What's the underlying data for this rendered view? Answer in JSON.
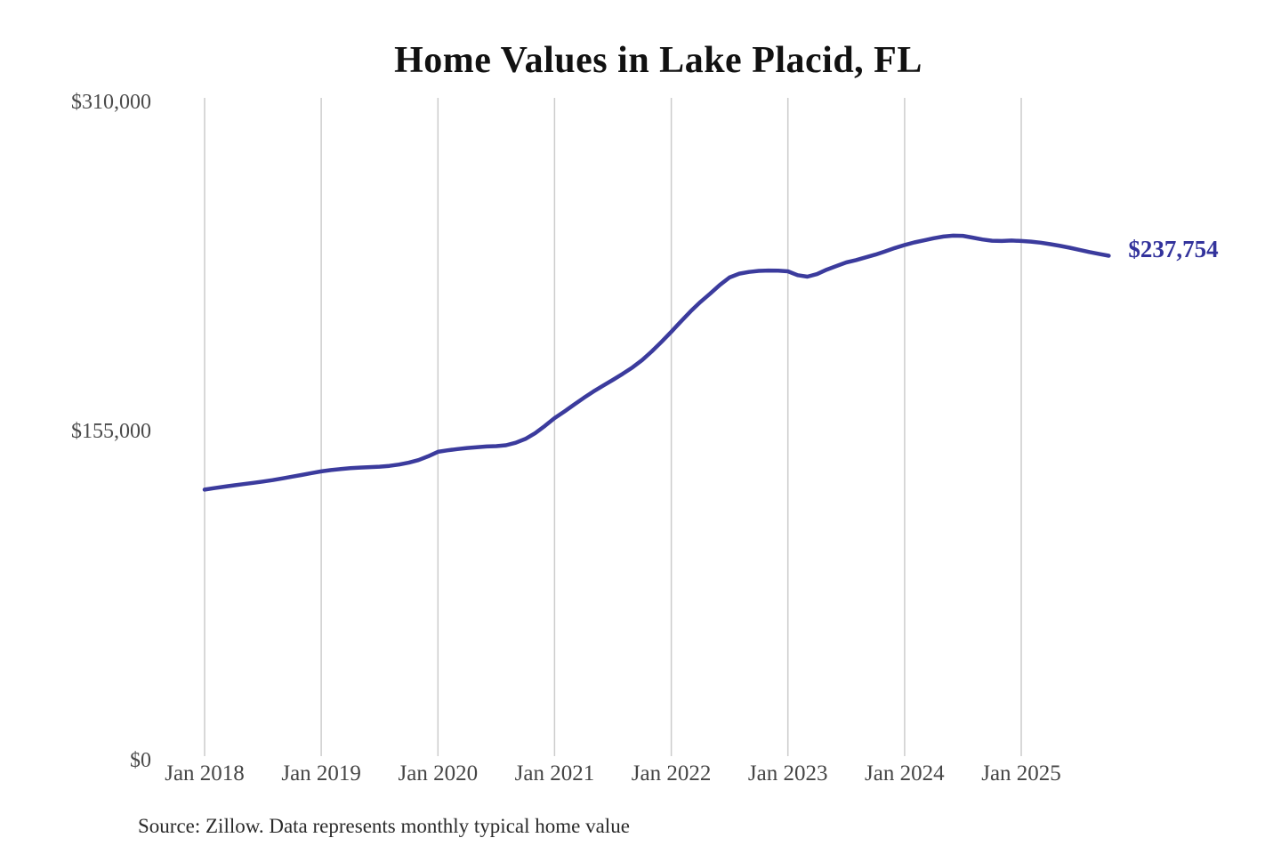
{
  "colors": {
    "line": "#3b3b9d",
    "end_label": "#33339c",
    "gridline": "#cccccc",
    "axis_text": "#4a4a4a",
    "title_text": "#111111",
    "background": "#ffffff"
  },
  "chart_data": {
    "type": "line",
    "title": "Home Values in Lake Placid, FL",
    "source": "Source: Zillow. Data represents monthly typical home value",
    "xlabel": "",
    "ylabel": "",
    "ylim": [
      0,
      310000
    ],
    "grid": "vertical-only",
    "legend": "none",
    "y_ticks": [
      {
        "label": "$0",
        "value": 0
      },
      {
        "label": "$155,000",
        "value": 155000
      },
      {
        "label": "$310,000",
        "value": 310000
      }
    ],
    "x_tick_labels": [
      "Jan 2018",
      "Jan 2019",
      "Jan 2020",
      "Jan 2021",
      "Jan 2022",
      "Jan 2023",
      "Jan 2024",
      "Jan 2025"
    ],
    "last_value": 237754,
    "last_value_label": "$237,754",
    "series": [
      {
        "name": "Typical home value",
        "color": "#3b3b9d",
        "frequency": "monthly",
        "x_start": "2018-01",
        "x_end": "2025-10",
        "months": [
          "2018-01",
          "2018-02",
          "2018-03",
          "2018-04",
          "2018-05",
          "2018-06",
          "2018-07",
          "2018-08",
          "2018-09",
          "2018-10",
          "2018-11",
          "2018-12",
          "2019-01",
          "2019-02",
          "2019-03",
          "2019-04",
          "2019-05",
          "2019-06",
          "2019-07",
          "2019-08",
          "2019-09",
          "2019-10",
          "2019-11",
          "2019-12",
          "2020-01",
          "2020-02",
          "2020-03",
          "2020-04",
          "2020-05",
          "2020-06",
          "2020-07",
          "2020-08",
          "2020-09",
          "2020-10",
          "2020-11",
          "2020-12",
          "2021-01",
          "2021-02",
          "2021-03",
          "2021-04",
          "2021-05",
          "2021-06",
          "2021-07",
          "2021-08",
          "2021-09",
          "2021-10",
          "2021-11",
          "2021-12",
          "2022-01",
          "2022-02",
          "2022-03",
          "2022-04",
          "2022-05",
          "2022-06",
          "2022-07",
          "2022-08",
          "2022-09",
          "2022-10",
          "2022-11",
          "2022-12",
          "2023-01",
          "2023-02",
          "2023-03",
          "2023-04",
          "2023-05",
          "2023-06",
          "2023-07",
          "2023-08",
          "2023-09",
          "2023-10",
          "2023-11",
          "2023-12",
          "2024-01",
          "2024-02",
          "2024-03",
          "2024-04",
          "2024-05",
          "2024-06",
          "2024-07",
          "2024-08",
          "2024-09",
          "2024-10",
          "2024-11",
          "2024-12",
          "2025-01",
          "2025-02",
          "2025-03",
          "2025-04",
          "2025-05",
          "2025-06",
          "2025-07",
          "2025-08",
          "2025-09",
          "2025-10"
        ],
        "values": [
          127600,
          128300,
          129000,
          129600,
          130200,
          130800,
          131400,
          132100,
          132900,
          133700,
          134500,
          135400,
          136200,
          136800,
          137300,
          137700,
          138000,
          138200,
          138400,
          138800,
          139400,
          140300,
          141500,
          143300,
          145400,
          146100,
          146700,
          147200,
          147600,
          147900,
          148100,
          148500,
          149700,
          151500,
          154200,
          157600,
          161300,
          164400,
          167600,
          170800,
          173800,
          176600,
          179300,
          182100,
          185100,
          188600,
          192700,
          197200,
          201900,
          206800,
          211600,
          216000,
          219900,
          224000,
          227500,
          229300,
          230100,
          230600,
          230800,
          230700,
          230400,
          228600,
          227900,
          229100,
          231200,
          232900,
          234600,
          235700,
          237000,
          238300,
          239800,
          241400,
          242800,
          244000,
          245000,
          246000,
          246800,
          247200,
          247100,
          246300,
          245400,
          244800,
          244700,
          244900,
          244700,
          244400,
          243900,
          243200,
          242400,
          241500,
          240500,
          239500,
          238600,
          237754
        ]
      }
    ]
  }
}
